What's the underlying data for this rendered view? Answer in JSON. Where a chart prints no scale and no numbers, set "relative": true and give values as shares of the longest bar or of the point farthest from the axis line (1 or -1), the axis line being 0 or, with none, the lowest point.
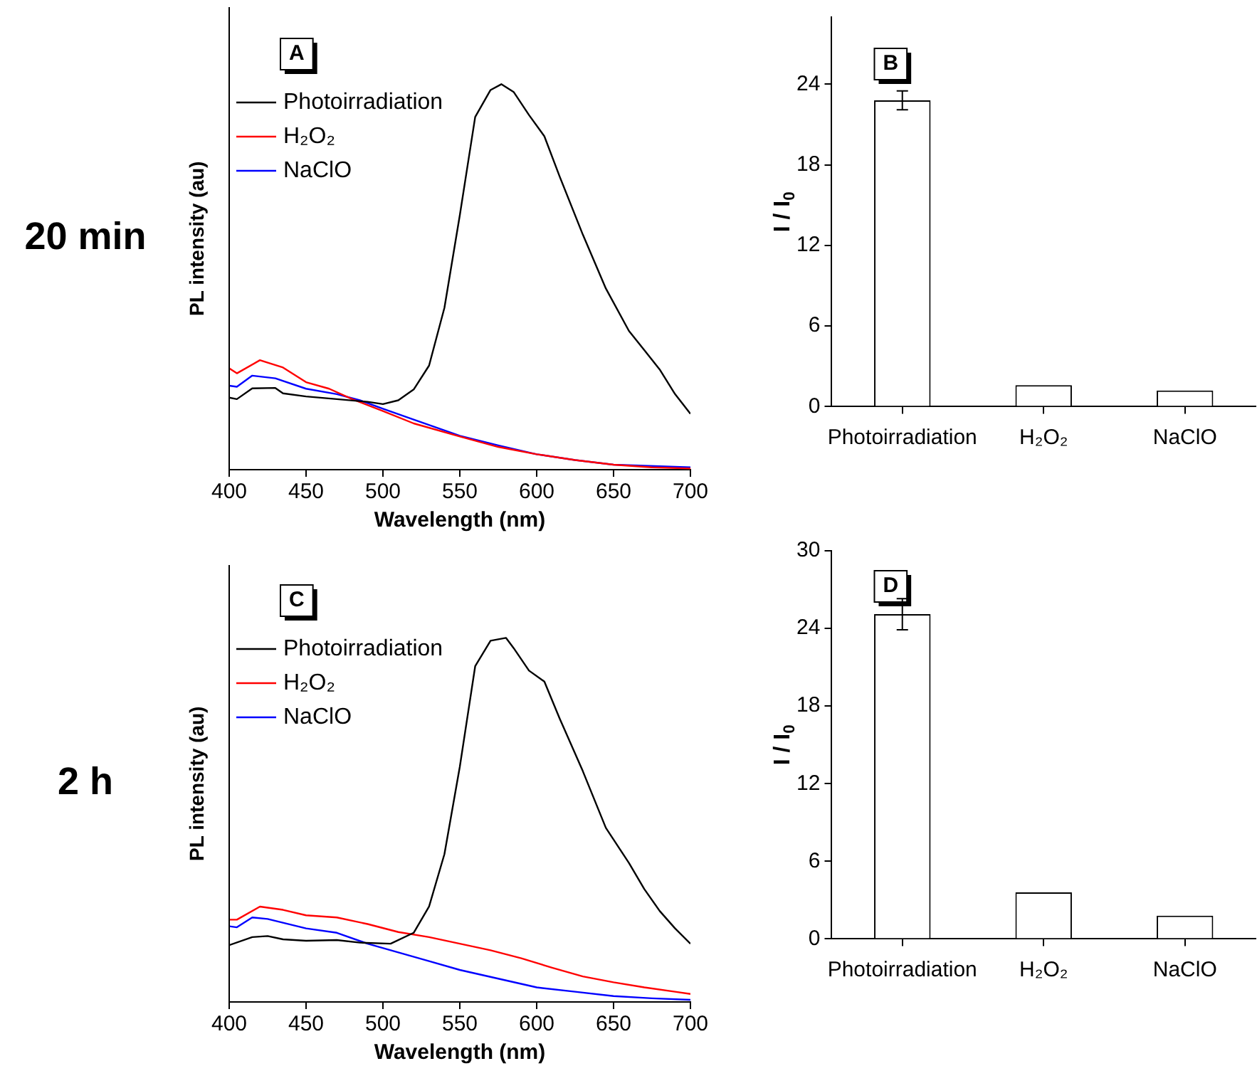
{
  "chart_data": [
    {
      "type": "line",
      "relative": true,
      "xlabel": "Wavelength (nm)",
      "ylabel": "PL intensity (au)",
      "xlim": [
        400,
        700
      ],
      "xticks": [
        400,
        450,
        500,
        550,
        600,
        650,
        700
      ],
      "grid": false,
      "legend": "top left",
      "annotations": [
        "A",
        "20 min"
      ],
      "series": [
        {
          "name": "Photoirradiation",
          "color": "#000000",
          "x": [
            400,
            405,
            415,
            430,
            435,
            450,
            470,
            490,
            500,
            510,
            520,
            530,
            540,
            550,
            560,
            570,
            577,
            585,
            595,
            605,
            615,
            630,
            645,
            660,
            670,
            680,
            690,
            700
          ],
          "values": [
            0.187,
            0.183,
            0.211,
            0.212,
            0.198,
            0.19,
            0.183,
            0.176,
            0.17,
            0.18,
            0.208,
            0.27,
            0.42,
            0.66,
            0.915,
            0.985,
            1,
            0.98,
            0.92,
            0.865,
            0.76,
            0.61,
            0.47,
            0.36,
            0.31,
            0.26,
            0.196,
            0.145
          ]
        },
        {
          "name": "H₂O₂",
          "color": "#ff0000",
          "x": [
            400,
            405,
            420,
            435,
            450,
            465,
            480,
            500,
            520,
            550,
            575,
            600,
            625,
            650,
            675,
            700
          ],
          "values": [
            0.263,
            0.25,
            0.284,
            0.265,
            0.227,
            0.21,
            0.183,
            0.152,
            0.12,
            0.086,
            0.059,
            0.04,
            0.025,
            0.013,
            0.006,
            0.003
          ]
        },
        {
          "name": "NaClO",
          "color": "#0000ff",
          "x": [
            400,
            405,
            415,
            430,
            450,
            470,
            485,
            500,
            520,
            550,
            575,
            600,
            625,
            650,
            700
          ],
          "values": [
            0.218,
            0.215,
            0.244,
            0.237,
            0.21,
            0.196,
            0.18,
            0.158,
            0.13,
            0.088,
            0.063,
            0.04,
            0.025,
            0.013,
            0.006
          ]
        }
      ]
    },
    {
      "type": "bar",
      "ylabel": "I / I$_{0}$",
      "categories": [
        "Photoirradiation",
        "H₂O₂",
        "NaClO"
      ],
      "values": [
        22.8,
        1.6,
        1.2
      ],
      "errors": [
        0.7,
        null,
        null
      ],
      "color": "#ffffff",
      "ylim": [
        0,
        29
      ],
      "yticks": [
        0,
        6,
        12,
        18,
        24
      ],
      "grid": false,
      "annotations": [
        "B"
      ]
    },
    {
      "type": "line",
      "relative": true,
      "xlabel": "Wavelength (nm)",
      "ylabel": "PL intensity (au)",
      "xlim": [
        400,
        700
      ],
      "xticks": [
        400,
        450,
        500,
        550,
        600,
        650,
        700
      ],
      "grid": false,
      "legend": "top left",
      "annotations": [
        "C",
        "2 h"
      ],
      "series": [
        {
          "name": "Photoirradiation",
          "color": "#000000",
          "x": [
            400,
            415,
            425,
            435,
            450,
            470,
            485,
            505,
            520,
            530,
            540,
            550,
            560,
            570,
            580,
            585,
            595,
            605,
            615,
            630,
            645,
            660,
            670,
            680,
            690,
            700
          ],
          "values": [
            0.156,
            0.178,
            0.181,
            0.172,
            0.168,
            0.17,
            0.163,
            0.16,
            0.19,
            0.262,
            0.406,
            0.646,
            0.922,
            0.992,
            1,
            0.972,
            0.91,
            0.88,
            0.778,
            0.634,
            0.478,
            0.382,
            0.31,
            0.25,
            0.202,
            0.16
          ]
        },
        {
          "name": "H₂O₂",
          "color": "#ff0000",
          "x": [
            400,
            405,
            420,
            435,
            450,
            470,
            490,
            510,
            530,
            550,
            570,
            590,
            610,
            630,
            650,
            670,
            690,
            700
          ],
          "values": [
            0.226,
            0.226,
            0.262,
            0.253,
            0.238,
            0.232,
            0.214,
            0.192,
            0.178,
            0.16,
            0.142,
            0.12,
            0.094,
            0.07,
            0.054,
            0.04,
            0.028,
            0.022
          ]
        },
        {
          "name": "NaClO",
          "color": "#0000ff",
          "x": [
            400,
            405,
            415,
            425,
            450,
            470,
            490,
            510,
            530,
            550,
            575,
            600,
            625,
            650,
            675,
            700
          ],
          "values": [
            0.208,
            0.205,
            0.232,
            0.228,
            0.202,
            0.19,
            0.16,
            0.136,
            0.112,
            0.088,
            0.064,
            0.04,
            0.028,
            0.016,
            0.01,
            0.006
          ]
        }
      ]
    },
    {
      "type": "bar",
      "ylabel": "I / I$_{0}$",
      "categories": [
        "Photoirradiation",
        "H₂O₂",
        "NaClO"
      ],
      "values": [
        25.1,
        3.6,
        1.8
      ],
      "errors": [
        1.2,
        null,
        null
      ],
      "color": "#ffffff",
      "ylim": [
        0,
        30
      ],
      "yticks": [
        0,
        6,
        12,
        18,
        24,
        30
      ],
      "grid": false,
      "annotations": [
        "D"
      ]
    }
  ]
}
